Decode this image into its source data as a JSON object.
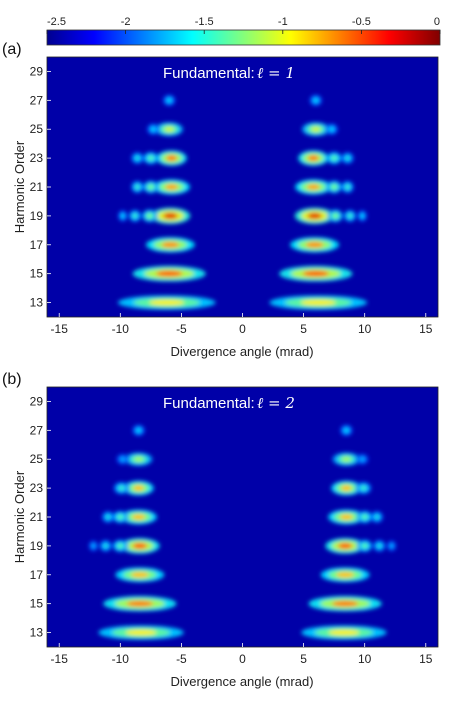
{
  "colorbar": {
    "ticks": [
      "-2.5",
      "-2",
      "-1.5",
      "-1",
      "-0.5",
      "0"
    ],
    "range": [
      -2.5,
      0
    ],
    "colormap": [
      "#00008f",
      "#0000ff",
      "#00ffff",
      "#ffff00",
      "#ff0000",
      "#800000"
    ]
  },
  "chart_data": [
    {
      "type": "heatmap",
      "panel_label": "(a)",
      "title_text": "Fundamental:",
      "title_math": "ℓ = 1",
      "xlabel": "Divergence angle (mrad)",
      "ylabel": "Harmonic Order",
      "xlim": [
        -16,
        16
      ],
      "ylim": [
        12,
        30
      ],
      "xticks": [
        "-15",
        "-10",
        "-5",
        "0",
        "5",
        "10",
        "15"
      ],
      "yticks": [
        "13",
        "15",
        "17",
        "19",
        "21",
        "23",
        "25",
        "27",
        "29"
      ],
      "symmetric": true,
      "blobs": [
        {
          "x": 6.2,
          "y": 13,
          "intensity": 0.7,
          "width": 3.2
        },
        {
          "x": 6.0,
          "y": 15,
          "intensity": 0.85,
          "width": 2.4
        },
        {
          "x": 5.9,
          "y": 17,
          "intensity": 0.8,
          "width": 1.6
        },
        {
          "x": 5.9,
          "y": 19,
          "intensity": 0.92,
          "width": 1.3
        },
        {
          "x": 5.8,
          "y": 21,
          "intensity": 0.78,
          "width": 1.2
        },
        {
          "x": 5.8,
          "y": 23,
          "intensity": 0.82,
          "width": 1.0
        },
        {
          "x": 6.0,
          "y": 25,
          "intensity": 0.65,
          "width": 0.9
        },
        {
          "x": 6.0,
          "y": 27,
          "intensity": 0.35,
          "width": 0.4
        },
        {
          "x": 7.6,
          "y": 19,
          "intensity": 0.55,
          "width": 0.5
        },
        {
          "x": 8.8,
          "y": 19,
          "intensity": 0.45,
          "width": 0.4
        },
        {
          "x": 9.8,
          "y": 19,
          "intensity": 0.35,
          "width": 0.3
        },
        {
          "x": 7.5,
          "y": 21,
          "intensity": 0.55,
          "width": 0.5
        },
        {
          "x": 8.6,
          "y": 21,
          "intensity": 0.45,
          "width": 0.4
        },
        {
          "x": 7.5,
          "y": 23,
          "intensity": 0.5,
          "width": 0.5
        },
        {
          "x": 8.6,
          "y": 23,
          "intensity": 0.4,
          "width": 0.4
        },
        {
          "x": 7.3,
          "y": 25,
          "intensity": 0.35,
          "width": 0.4
        }
      ]
    },
    {
      "type": "heatmap",
      "panel_label": "(b)",
      "title_text": "Fundamental:",
      "title_math": "ℓ = 2",
      "xlabel": "Divergence angle (mrad)",
      "ylabel": "Harmonic Order",
      "xlim": [
        -16,
        16
      ],
      "ylim": [
        12,
        30
      ],
      "xticks": [
        "-15",
        "-10",
        "-5",
        "0",
        "5",
        "10",
        "15"
      ],
      "yticks": [
        "13",
        "15",
        "17",
        "19",
        "21",
        "23",
        "25",
        "27",
        "29"
      ],
      "symmetric": true,
      "blobs": [
        {
          "x": 8.3,
          "y": 13,
          "intensity": 0.7,
          "width": 2.8
        },
        {
          "x": 8.4,
          "y": 15,
          "intensity": 0.82,
          "width": 2.4
        },
        {
          "x": 8.4,
          "y": 17,
          "intensity": 0.75,
          "width": 1.6
        },
        {
          "x": 8.4,
          "y": 19,
          "intensity": 0.85,
          "width": 1.3
        },
        {
          "x": 8.5,
          "y": 21,
          "intensity": 0.75,
          "width": 1.2
        },
        {
          "x": 8.5,
          "y": 23,
          "intensity": 0.75,
          "width": 1.0
        },
        {
          "x": 8.5,
          "y": 25,
          "intensity": 0.6,
          "width": 0.9
        },
        {
          "x": 8.5,
          "y": 27,
          "intensity": 0.35,
          "width": 0.4
        },
        {
          "x": 10.0,
          "y": 19,
          "intensity": 0.5,
          "width": 0.5
        },
        {
          "x": 11.2,
          "y": 19,
          "intensity": 0.4,
          "width": 0.4
        },
        {
          "x": 12.2,
          "y": 19,
          "intensity": 0.3,
          "width": 0.3
        },
        {
          "x": 10.0,
          "y": 21,
          "intensity": 0.5,
          "width": 0.5
        },
        {
          "x": 11.0,
          "y": 21,
          "intensity": 0.4,
          "width": 0.4
        },
        {
          "x": 9.9,
          "y": 23,
          "intensity": 0.45,
          "width": 0.5
        },
        {
          "x": 9.8,
          "y": 25,
          "intensity": 0.3,
          "width": 0.4
        }
      ]
    }
  ]
}
